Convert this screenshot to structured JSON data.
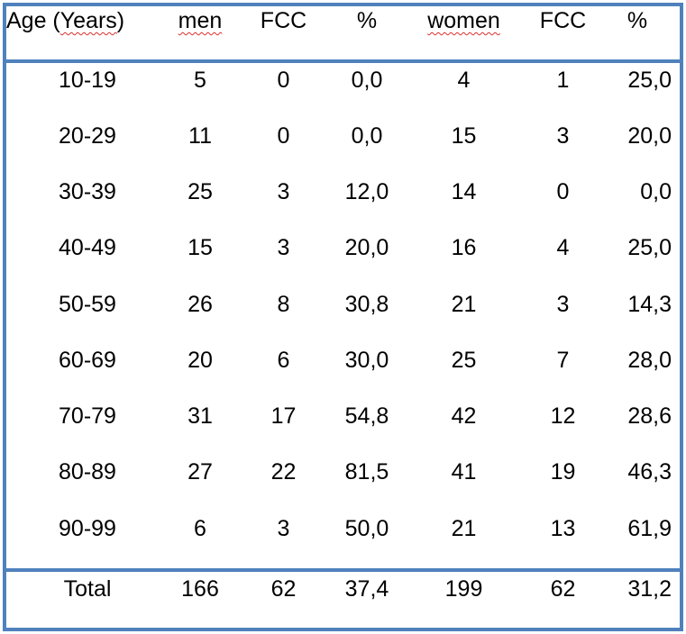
{
  "table": {
    "headers": [
      "Age (Years)",
      "men",
      "FCC",
      "%",
      "women",
      "FCC",
      "%"
    ],
    "rows": [
      [
        "10-19",
        "5",
        "0",
        "0,0",
        "4",
        "1",
        "25,0"
      ],
      [
        "20-29",
        "11",
        "0",
        "0,0",
        "15",
        "3",
        "20,0"
      ],
      [
        "30-39",
        "25",
        "3",
        "12,0",
        "14",
        "0",
        "0,0"
      ],
      [
        "40-49",
        "15",
        "3",
        "20,0",
        "16",
        "4",
        "25,0"
      ],
      [
        "50-59",
        "26",
        "8",
        "30,8",
        "21",
        "3",
        "14,3"
      ],
      [
        "60-69",
        "20",
        "6",
        "30,0",
        "25",
        "7",
        "28,0"
      ],
      [
        "70-79",
        "31",
        "17",
        "54,8",
        "42",
        "12",
        "28,6"
      ],
      [
        "80-89",
        "27",
        "22",
        "81,5",
        "41",
        "19",
        "46,3"
      ],
      [
        "90-99",
        "6",
        "3",
        "50,0",
        "21",
        "13",
        "61,9"
      ]
    ],
    "total": [
      "Total",
      "166",
      "62",
      "37,4",
      "199",
      "62",
      "31,2"
    ],
    "border_color": "#4f81bd",
    "spellcheck_underline_color": "#d9302c"
  }
}
